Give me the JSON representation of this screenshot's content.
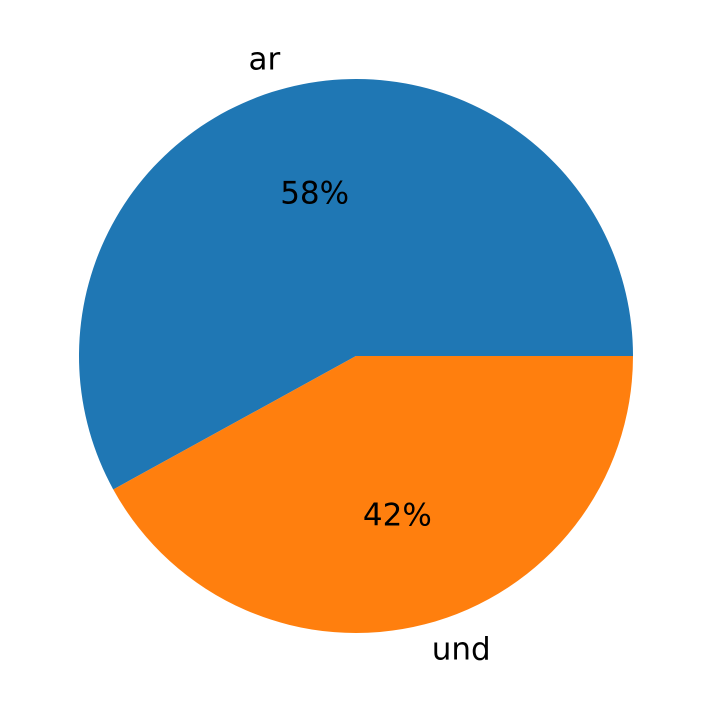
{
  "chart_data": {
    "type": "pie",
    "categories": [
      "ar",
      "und"
    ],
    "values": [
      58,
      42
    ],
    "value_labels": [
      "58%",
      "42%"
    ],
    "colors": [
      "#1f77b4",
      "#ff7f0e"
    ]
  }
}
